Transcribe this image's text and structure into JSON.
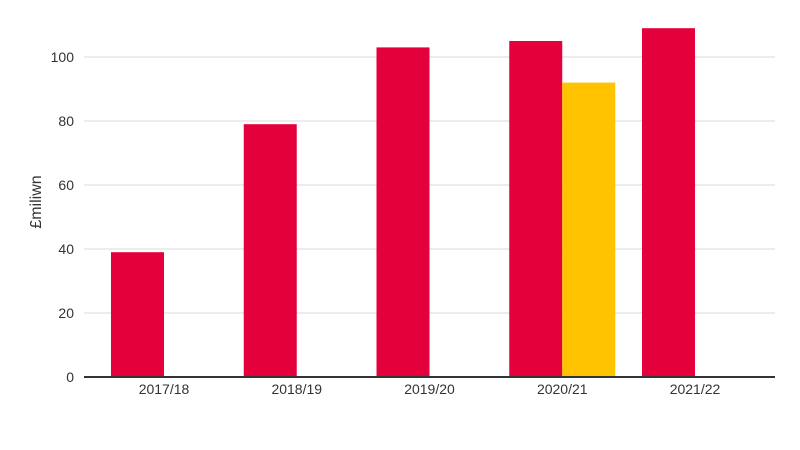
{
  "chart_data": {
    "type": "bar",
    "categories": [
      "2017/18",
      "2018/19",
      "2019/20",
      "2020/21",
      "2021/22"
    ],
    "series": [
      {
        "values": [
          39,
          79,
          103,
          105,
          109
        ],
        "color": "#e4003b"
      },
      {
        "values": [
          null,
          null,
          null,
          92,
          null
        ],
        "color": "#ffc300"
      }
    ],
    "ylabel": "£miliwn",
    "ylim": [
      0,
      110
    ],
    "yticks": [
      0,
      20,
      40,
      60,
      80,
      100
    ],
    "grid": true,
    "legend": "none"
  }
}
